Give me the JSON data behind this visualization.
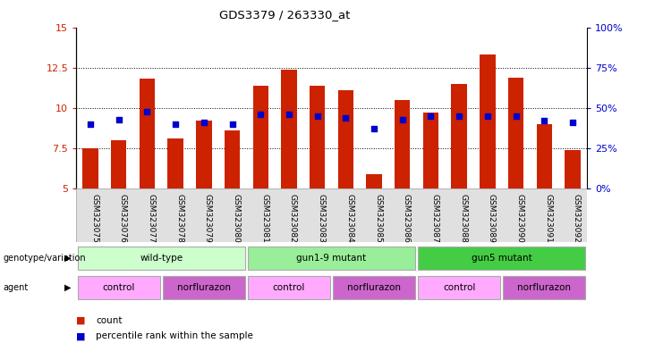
{
  "title": "GDS3379 / 263330_at",
  "samples": [
    "GSM323075",
    "GSM323076",
    "GSM323077",
    "GSM323078",
    "GSM323079",
    "GSM323080",
    "GSM323081",
    "GSM323082",
    "GSM323083",
    "GSM323084",
    "GSM323085",
    "GSM323086",
    "GSM323087",
    "GSM323088",
    "GSM323089",
    "GSM323090",
    "GSM323091",
    "GSM323092"
  ],
  "bar_values": [
    7.5,
    8.0,
    11.8,
    8.1,
    9.2,
    8.6,
    11.4,
    12.4,
    11.4,
    11.1,
    5.9,
    10.5,
    9.7,
    11.5,
    13.3,
    11.9,
    9.0,
    7.4
  ],
  "dot_values": [
    9.0,
    9.3,
    9.8,
    9.0,
    9.1,
    9.0,
    9.6,
    9.6,
    9.5,
    9.4,
    8.7,
    9.3,
    9.5,
    9.5,
    9.5,
    9.5,
    9.2,
    9.1
  ],
  "bar_color": "#cc2200",
  "dot_color": "#0000cc",
  "ylim_left": [
    5,
    15
  ],
  "ylim_right": [
    0,
    100
  ],
  "yticks_left": [
    5,
    7.5,
    10,
    12.5,
    15
  ],
  "ytick_labels_left": [
    "5",
    "7.5",
    "10",
    "12.5",
    "15"
  ],
  "yticks_right": [
    0,
    25,
    50,
    75,
    100
  ],
  "ytick_labels_right": [
    "0%",
    "25%",
    "50%",
    "75%",
    "100%"
  ],
  "hlines": [
    7.5,
    10.0,
    12.5
  ],
  "genotype_groups": [
    {
      "label": "wild-type",
      "start": 0,
      "end": 5,
      "color": "#ccffcc"
    },
    {
      "label": "gun1-9 mutant",
      "start": 6,
      "end": 11,
      "color": "#99ee99"
    },
    {
      "label": "gun5 mutant",
      "start": 12,
      "end": 17,
      "color": "#44cc44"
    }
  ],
  "agent_groups": [
    {
      "label": "control",
      "start": 0,
      "end": 2,
      "color": "#ffaaff"
    },
    {
      "label": "norflurazon",
      "start": 3,
      "end": 5,
      "color": "#cc66cc"
    },
    {
      "label": "control",
      "start": 6,
      "end": 8,
      "color": "#ffaaff"
    },
    {
      "label": "norflurazon",
      "start": 9,
      "end": 11,
      "color": "#cc66cc"
    },
    {
      "label": "control",
      "start": 12,
      "end": 14,
      "color": "#ffaaff"
    },
    {
      "label": "norflurazon",
      "start": 15,
      "end": 17,
      "color": "#cc66cc"
    }
  ],
  "bar_width": 0.55,
  "ylabel_left_color": "#cc2200",
  "ylabel_right_color": "#0000cc"
}
